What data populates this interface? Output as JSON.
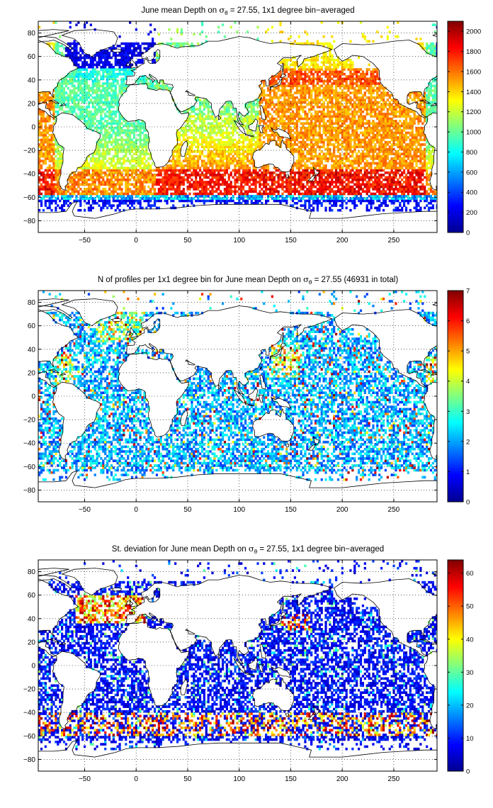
{
  "figure_title": "",
  "colors": {
    "colormap": [
      "#00008f",
      "#0000ff",
      "#00ffff",
      "#ffff00",
      "#ff0000",
      "#800000"
    ],
    "coast": "#000000",
    "grid": "#000000"
  },
  "chart_data": [
    {
      "type": "heatmap",
      "title_prefix": "June mean Depth on ",
      "title_symbol": "σ",
      "title_subscript": "θ",
      "title_suffix": " = 27.55, 1x1 degree bin−averaged",
      "xlabel": "",
      "ylabel": "",
      "xlim": [
        -95,
        292
      ],
      "ylim": [
        -90,
        90
      ],
      "x_ticks": [
        -50,
        0,
        50,
        100,
        150,
        200,
        250
      ],
      "y_ticks": [
        80,
        60,
        40,
        20,
        0,
        -20,
        -40,
        -60,
        -80
      ],
      "x_tick_labels": [
        "−50",
        "0",
        "50",
        "100",
        "150",
        "200",
        "250"
      ],
      "y_tick_labels": [
        "80",
        "60",
        "40",
        "20",
        "0",
        "−20",
        "−40",
        "−60",
        "−80"
      ],
      "grid": true,
      "colorbar": {
        "min": 0,
        "max": 2100,
        "ticks": [
          0,
          200,
          400,
          600,
          800,
          1000,
          1200,
          1400,
          1600,
          1800,
          2000
        ],
        "tick_labels": [
          "0",
          "200",
          "400",
          "600",
          "800",
          "1000",
          "1200",
          "1400",
          "1600",
          "1800",
          "2000"
        ]
      },
      "field": "depth"
    },
    {
      "type": "heatmap",
      "title_prefix": "N of profiles per 1x1 degree bin for June mean Depth on ",
      "title_symbol": "σ",
      "title_subscript": "θ",
      "title_suffix": " = 27.55 (46931 in total)",
      "xlabel": "",
      "ylabel": "",
      "xlim": [
        -95,
        292
      ],
      "ylim": [
        -90,
        90
      ],
      "x_ticks": [
        -50,
        0,
        50,
        100,
        150,
        200,
        250
      ],
      "y_ticks": [
        80,
        60,
        40,
        20,
        0,
        -20,
        -40,
        -60,
        -80
      ],
      "x_tick_labels": [
        "−50",
        "0",
        "50",
        "100",
        "150",
        "200",
        "250"
      ],
      "y_tick_labels": [
        "80",
        "60",
        "40",
        "20",
        "0",
        "−20",
        "−40",
        "−60",
        "−80"
      ],
      "grid": true,
      "colorbar": {
        "min": 0,
        "max": 7,
        "ticks": [
          0,
          1,
          2,
          3,
          4,
          5,
          6,
          7
        ],
        "tick_labels": [
          "0",
          "1",
          "2",
          "3",
          "4",
          "5",
          "6",
          "7"
        ]
      },
      "field": "count"
    },
    {
      "type": "heatmap",
      "title_prefix": "St. deviation for June mean Depth on ",
      "title_symbol": "σ",
      "title_subscript": "θ",
      "title_suffix": " = 27.55, 1x1 degree bin−averaged",
      "xlabel": "",
      "ylabel": "",
      "xlim": [
        -95,
        292
      ],
      "ylim": [
        -90,
        90
      ],
      "x_ticks": [
        -50,
        0,
        50,
        100,
        150,
        200,
        250
      ],
      "y_ticks": [
        80,
        60,
        40,
        20,
        0,
        -20,
        -40,
        -60,
        -80
      ],
      "x_tick_labels": [
        "−50",
        "0",
        "50",
        "100",
        "150",
        "200",
        "250"
      ],
      "y_tick_labels": [
        "80",
        "60",
        "40",
        "20",
        "0",
        "−20",
        "−40",
        "−60",
        "−80"
      ],
      "grid": true,
      "colorbar": {
        "min": 0,
        "max": 64,
        "ticks": [
          0,
          10,
          20,
          30,
          40,
          50,
          60
        ],
        "tick_labels": [
          "0",
          "10",
          "20",
          "30",
          "40",
          "50",
          "60"
        ]
      },
      "field": "stdev"
    }
  ]
}
